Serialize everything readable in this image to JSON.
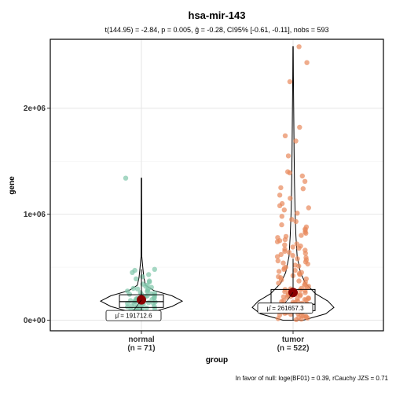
{
  "chart_data": {
    "type": "violin-box-scatter",
    "title": "hsa-mir-143",
    "subtitle": "t(144.95) = -2.84, p = 0.005, ĝ = -0.28, CI95% [-0.61, -0.11], nobs = 593",
    "caption": "In favor of null: loge(BF01) = 0.39, rCauchy JZS = 0.71",
    "xlabel": "group",
    "ylabel": "gene",
    "ylim": [
      -100000,
      2650000
    ],
    "yticks": [
      {
        "value": 0,
        "label": "0e+00"
      },
      {
        "value": 1000000,
        "label": "1e+06"
      },
      {
        "value": 2000000,
        "label": "2e+06"
      }
    ],
    "grid": true,
    "legend": "none",
    "groups": [
      {
        "key": "normal",
        "label": "normal",
        "n_label": "(n = 71)",
        "color": "#7fc6a9",
        "mean": 191712.6,
        "mean_label": "μ̂ = 191712.6",
        "min": 30000,
        "max": 1340000,
        "box": {
          "q1": 120000,
          "median": 175000,
          "q3": 240000,
          "whisker_low": 30000,
          "whisker_high": 480000
        },
        "violin": [
          [
            30000,
            0.04
          ],
          [
            80000,
            0.3
          ],
          [
            130000,
            0.75
          ],
          [
            180000,
            1.0
          ],
          [
            230000,
            0.75
          ],
          [
            280000,
            0.3
          ],
          [
            330000,
            0.1
          ],
          [
            400000,
            0.06
          ],
          [
            470000,
            0.04
          ],
          [
            600000,
            0.01
          ],
          [
            900000,
            0.007
          ],
          [
            1200000,
            0.006
          ],
          [
            1340000,
            0.005
          ]
        ],
        "points": [
          1340000,
          480000,
          470000,
          450000,
          430000,
          410000,
          390000,
          370000,
          360000,
          340000,
          330000,
          320000,
          310000,
          300000,
          295000,
          290000,
          280000,
          275000,
          270000,
          260000,
          255000,
          250000,
          245000,
          240000,
          235000,
          230000,
          225000,
          220000,
          215000,
          210000,
          205000,
          200000,
          195000,
          190000,
          185000,
          180000,
          178000,
          175000,
          172000,
          170000,
          165000,
          160000,
          158000,
          155000,
          150000,
          145000,
          140000,
          135000,
          130000,
          125000,
          120000,
          118000,
          115000,
          110000,
          105000,
          100000,
          95000,
          90000,
          85000,
          80000,
          78000,
          75000,
          70000,
          65000,
          60000,
          55000,
          50000,
          45000,
          40000,
          35000,
          30000
        ]
      },
      {
        "key": "tumor",
        "label": "tumor",
        "n_label": "(n = 522)",
        "color": "#e8895b",
        "mean": 261657.3,
        "mean_label": "μ̂ = 261657.3",
        "min": 0,
        "max": 2580000,
        "box": {
          "q1": 90000,
          "median": 150000,
          "q3": 290000,
          "whisker_low": 0,
          "whisker_high": 580000
        },
        "violin": [
          [
            0,
            0.25
          ],
          [
            60000,
            0.8
          ],
          [
            120000,
            1.0
          ],
          [
            180000,
            0.85
          ],
          [
            250000,
            0.55
          ],
          [
            350000,
            0.3
          ],
          [
            450000,
            0.18
          ],
          [
            600000,
            0.1
          ],
          [
            800000,
            0.07
          ],
          [
            1000000,
            0.05
          ],
          [
            1300000,
            0.035
          ],
          [
            1600000,
            0.025
          ],
          [
            2000000,
            0.015
          ],
          [
            2300000,
            0.008
          ],
          [
            2580000,
            0.004
          ]
        ],
        "points": [
          2580000,
          2430000,
          2250000,
          1820000,
          1740000,
          1690000,
          1550000,
          1400000,
          1390000,
          1360000,
          1310000,
          1250000,
          1240000,
          1180000,
          1150000,
          1100000,
          1080000,
          1060000,
          1040000,
          1010000,
          980000,
          950000,
          930000,
          900000,
          880000,
          860000,
          850000,
          830000,
          820000,
          800000,
          790000,
          780000,
          760000,
          750000,
          740000,
          720000,
          710000,
          700000,
          690000,
          680000,
          670000,
          660000,
          650000,
          640000,
          630000,
          620000,
          610000,
          600000,
          590000,
          580000,
          570000,
          560000,
          550000,
          540000,
          530000,
          520000,
          510000,
          500000,
          490000,
          480000,
          470000,
          460000,
          450000,
          440000,
          430000,
          420000,
          410000,
          400000,
          390000,
          380000,
          370000,
          360000,
          350000,
          340000,
          330000,
          320000,
          310000,
          300000,
          295000,
          290000,
          285000,
          280000,
          275000,
          270000,
          265000,
          260000,
          255000,
          250000,
          245000,
          240000,
          235000,
          230000,
          225000,
          220000,
          215000,
          210000,
          205000,
          200000,
          195000,
          190000,
          185000,
          180000,
          175000,
          170000,
          165000,
          160000,
          155000,
          150000,
          145000,
          140000,
          135000,
          130000,
          125000,
          120000,
          115000,
          110000,
          105000,
          100000,
          95000,
          90000,
          85000,
          80000,
          75000,
          70000,
          65000,
          60000,
          55000,
          50000,
          45000,
          40000,
          35000,
          30000,
          25000,
          20000,
          15000,
          10000,
          5000
        ]
      }
    ]
  }
}
